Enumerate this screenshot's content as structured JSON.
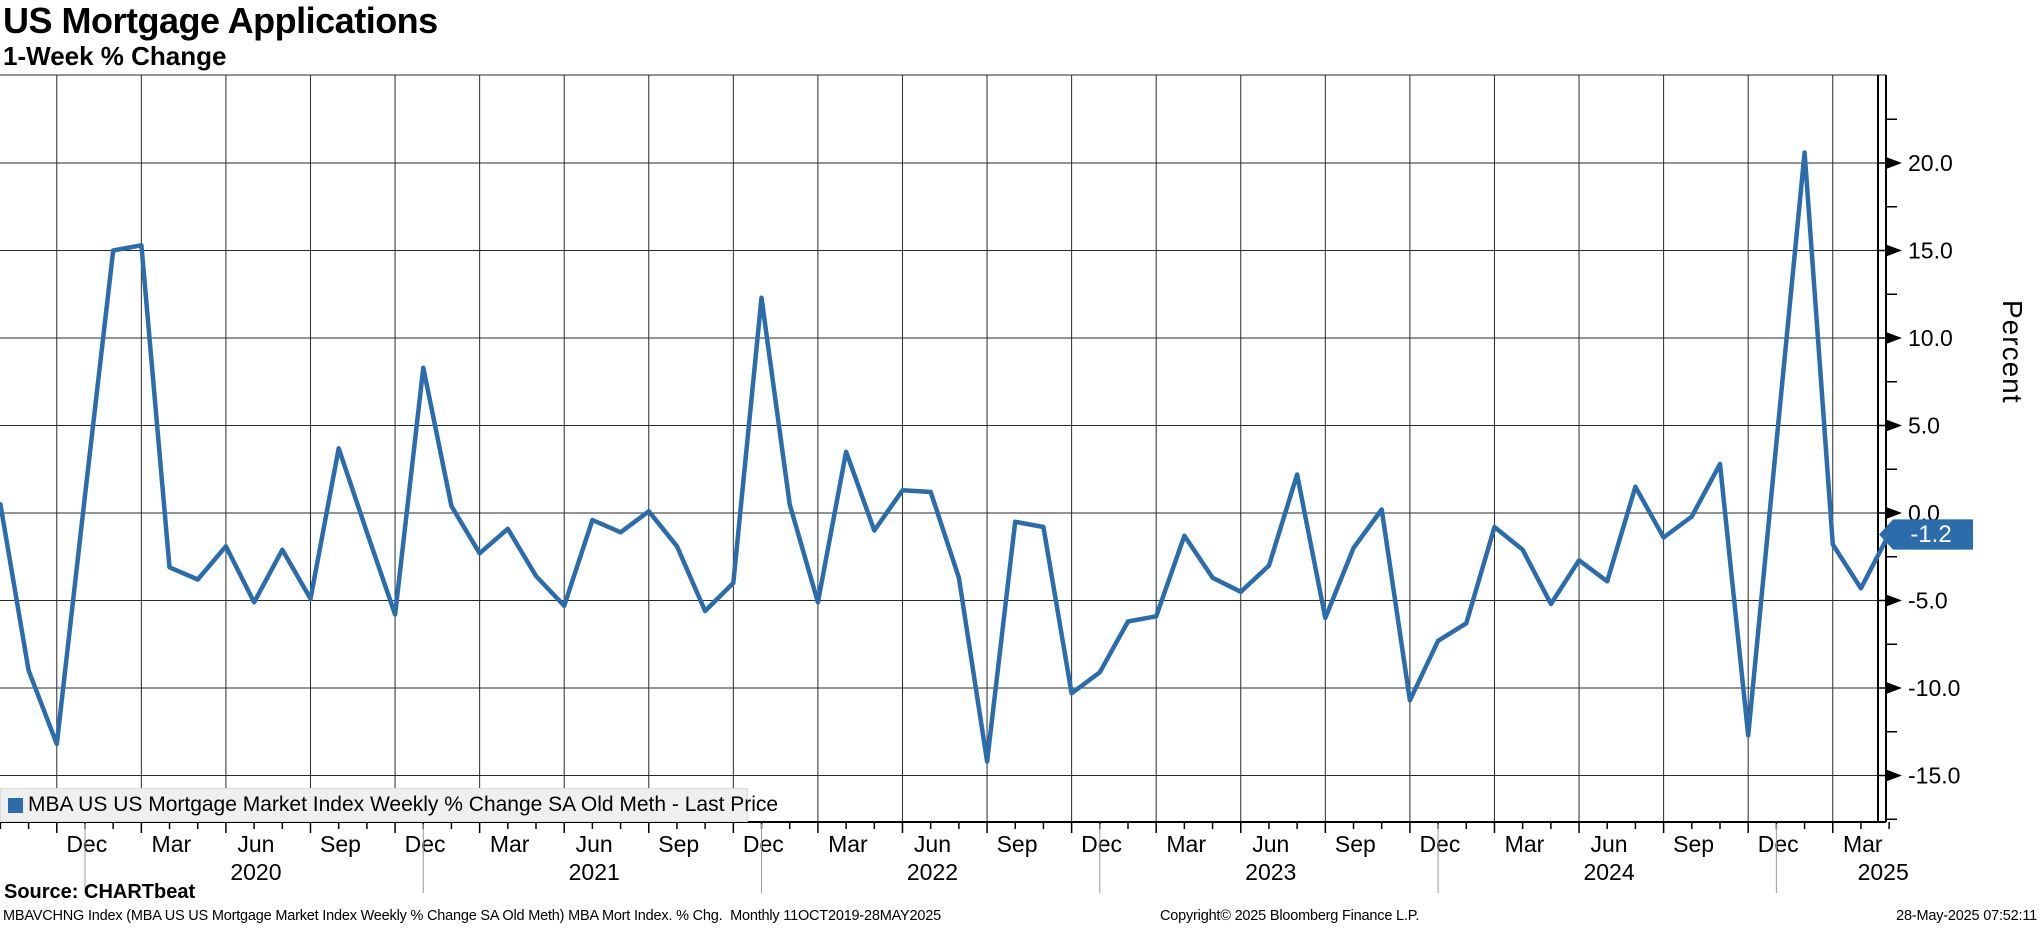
{
  "header": {
    "title": "US Mortgage Applications",
    "subtitle": "1-Week % Change"
  },
  "legend": {
    "label": "MBA US US Mortgage Market Index Weekly % Change SA Old Meth - Last Price",
    "marker_color": "#2b6cac"
  },
  "y_axis": {
    "title": "Percent",
    "ticks": [
      20.0,
      15.0,
      10.0,
      5.0,
      0.0,
      -5.0,
      -10.0,
      -15.0
    ],
    "minor_step": 2.5,
    "last_price": {
      "label": "-1.2",
      "value": -1.2,
      "badge_color": "#2b6cac",
      "text_color": "#ffffff"
    }
  },
  "source": "Source: CHARTbeat",
  "footer": {
    "left": "MBAVCHNG Index (MBA US US Mortgage Market Index Weekly % Change SA Old Meth) MBA Mort Index. % Chg.  Monthly 11OCT2019-28MAY2025",
    "copyright": "Copyright© 2025 Bloomberg Finance L.P.",
    "datetime": "28-May-2025 07:52:11"
  },
  "chart_data": {
    "type": "line",
    "title": "US Mortgage Applications",
    "subtitle": "1-Week % Change",
    "series_name": "MBA US US Mortgage Market Index Weekly % Change SA Old Meth - Last Price",
    "ylabel": "Percent",
    "ylim": [
      -17.7,
      25.0
    ],
    "grid": true,
    "legend_position": "bottom-left",
    "line_color": "#2b6cac",
    "frequency": "monthly",
    "period": "11OCT2019-28MAY2025",
    "last_price": -1.2,
    "x": [
      "Oct 2019",
      "Nov 2019",
      "Dec 2019",
      "Jan 2020",
      "Feb 2020",
      "Mar 2020",
      "Apr 2020",
      "May 2020",
      "Jun 2020",
      "Jul 2020",
      "Aug 2020",
      "Sep 2020",
      "Oct 2020",
      "Nov 2020",
      "Dec 2020",
      "Jan 2021",
      "Feb 2021",
      "Mar 2021",
      "Apr 2021",
      "May 2021",
      "Jun 2021",
      "Jul 2021",
      "Aug 2021",
      "Sep 2021",
      "Oct 2021",
      "Nov 2021",
      "Dec 2021",
      "Jan 2022",
      "Feb 2022",
      "Mar 2022",
      "Apr 2022",
      "May 2022",
      "Jun 2022",
      "Jul 2022",
      "Aug 2022",
      "Sep 2022",
      "Oct 2022",
      "Nov 2022",
      "Dec 2022",
      "Jan 2023",
      "Feb 2023",
      "Mar 2023",
      "Apr 2023",
      "May 2023",
      "Jun 2023",
      "Jul 2023",
      "Aug 2023",
      "Sep 2023",
      "Oct 2023",
      "Nov 2023",
      "Dec 2023",
      "Jan 2024",
      "Feb 2024",
      "Mar 2024",
      "Apr 2024",
      "May 2024",
      "Jun 2024",
      "Jul 2024",
      "Aug 2024",
      "Sep 2024",
      "Oct 2024",
      "Nov 2024",
      "Dec 2024",
      "Jan 2025",
      "Feb 2025",
      "Mar 2025",
      "Apr 2025",
      "May 2025"
    ],
    "values": [
      0.5,
      -9.0,
      -13.2,
      1.0,
      15.0,
      15.3,
      -3.1,
      -3.8,
      -1.9,
      -5.1,
      -2.1,
      -4.9,
      3.7,
      -1.1,
      -5.8,
      8.3,
      0.4,
      -2.3,
      -0.9,
      -3.6,
      -5.3,
      -0.4,
      -1.1,
      0.1,
      -1.9,
      -5.6,
      -4.0,
      12.3,
      0.5,
      -5.1,
      3.5,
      -1.0,
      1.3,
      1.2,
      -3.7,
      -14.2,
      -0.5,
      -0.8,
      -10.3,
      -9.1,
      -6.2,
      -5.9,
      -1.3,
      -3.7,
      -4.5,
      -3.0,
      2.2,
      -6.0,
      -2.0,
      0.2,
      -10.7,
      -7.3,
      -6.3,
      -0.8,
      -2.1,
      -5.2,
      -2.7,
      -3.9,
      1.5,
      -1.4,
      -0.2,
      2.8,
      -12.7,
      4.0,
      20.6,
      -1.8,
      -4.3,
      -1.2
    ]
  }
}
